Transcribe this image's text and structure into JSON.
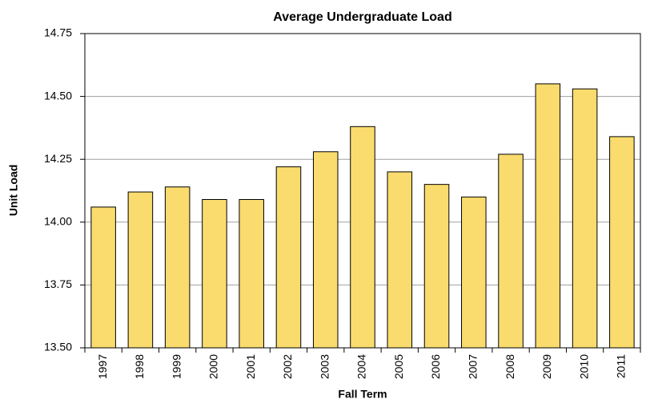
{
  "chart_data": {
    "type": "bar",
    "title": "Average Undergraduate Load",
    "x_label": "Fall Term",
    "y_label": "Unit Load",
    "categories": [
      "1997",
      "1998",
      "1999",
      "2000",
      "2001",
      "2002",
      "2003",
      "2004",
      "2005",
      "2006",
      "2007",
      "2008",
      "2009",
      "2010",
      "2011"
    ],
    "values": [
      14.06,
      14.12,
      14.14,
      14.09,
      14.09,
      14.22,
      14.28,
      14.38,
      14.2,
      14.15,
      14.1,
      14.27,
      14.55,
      14.53,
      14.34
    ],
    "color": "#fadb6e",
    "ylim": [
      13.5,
      14.75
    ],
    "yticks": [
      {
        "value": 13.5,
        "label": "13.50"
      },
      {
        "value": 13.75,
        "label": "13.75"
      },
      {
        "value": 14.0,
        "label": "14.00"
      },
      {
        "value": 14.25,
        "label": "14.25"
      },
      {
        "value": 14.5,
        "label": "14.50"
      },
      {
        "value": 14.75,
        "label": "14.75"
      }
    ],
    "grid": true
  }
}
